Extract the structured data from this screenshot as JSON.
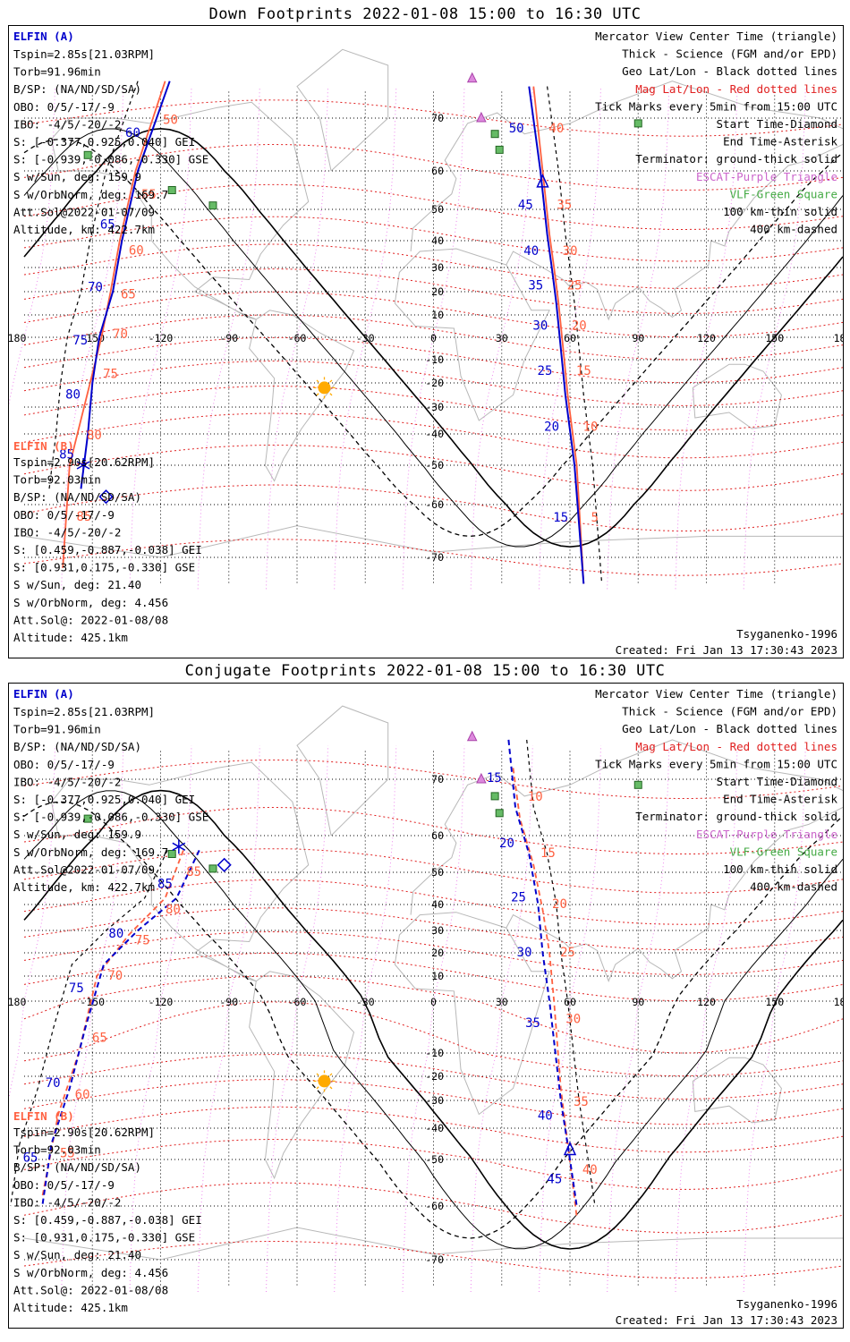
{
  "colors": {
    "elfin_a": "#0000cc",
    "elfin_b": "#ff6040",
    "mag_grid": "#e02020",
    "geo_grid": "#000000",
    "terminator": "#000000",
    "escat": "#cc66cc",
    "vlf": "#44aa44",
    "sun": "#ffaa00",
    "coast": "#b8b8b8"
  },
  "icons": {
    "sun": "sun-icon",
    "escat": "purple-triangle-icon",
    "vlf": "green-square-icon"
  },
  "lon_ticks": [
    "180",
    "-150",
    "-120",
    "-90",
    "-60",
    "-30",
    "0",
    "30",
    "60",
    "90",
    "120",
    "150",
    "180"
  ],
  "lat_ticks": [
    "70",
    "60",
    "50",
    "40",
    "30",
    "20",
    "10",
    "0",
    "-10",
    "-20",
    "-30",
    "-40",
    "-50",
    "-60",
    "-70"
  ],
  "legend": [
    "Mercator View Center Time (triangle)",
    "Thick - Science (FGM and/or EPD)",
    "Geo Lat/Lon - Black dotted lines",
    "Mag Lat/Lon - Red dotted lines",
    "Tick Marks every 5min from 15:00 UTC",
    "Start Time-Diamond",
    "End Time-Asterisk",
    "Terminator: ground-thick solid",
    "ESCAT-Purple Triangle",
    "VLF-Green Square",
    "100 km-thin solid",
    "400 km-dashed"
  ],
  "elfin_a": {
    "name": "ELFIN (A)",
    "lines": [
      "Tspin=2.85s[21.03RPM]",
      "Torb=91.96min",
      "B/SP: (NA/ND/SD/SA)",
      "OBO: 0/5/-17/-9",
      "IBO: -4/5/-20/-2",
      "S: [-0.377,0.925,0.040] GEI",
      "S: [-0.939,-0.086,-0.330] GSE",
      "S w/Sun, deg: 159.9",
      "S w/OrbNorm, deg: 169.7",
      "Att.Sol@2022-01-07/09",
      "Altitude, km: 422.7km"
    ]
  },
  "elfin_b": {
    "name": "ELFIN (B)",
    "lines": [
      "Tspin=2.90s[20.62RPM]",
      "Torb=92.03min",
      "B/SP: (NA/ND/SD/SA)",
      "OBO: 0/5/-17/-9",
      "IBO: -4/5/-20/-2",
      "S: [0.459,-0.887,-0.038] GEI",
      "S: [0.931,0.175,-0.330] GSE",
      "S w/Sun, deg: 21.40",
      "S w/OrbNorm, deg: 4.456",
      "Att.Sol@: 2022-01-08/08",
      "Altitude: 425.1km"
    ]
  },
  "model": "Tsyganenko-1996",
  "created": "Created: Fri Jan 13 17:30:43 2023",
  "panels": [
    {
      "title": "Down Footprints 2022-01-08 15:00 to 16:30 UTC",
      "a_labels": [
        [
          "50",
          "bl"
        ],
        [
          "45",
          "bl"
        ],
        [
          "40",
          "bl"
        ],
        [
          "35",
          "bl"
        ],
        [
          "30",
          "bl"
        ],
        [
          "25",
          "bl"
        ],
        [
          "20",
          "bl"
        ],
        [
          "15",
          "bl"
        ],
        [
          "60",
          "bl"
        ],
        [
          "65",
          "bl"
        ],
        [
          "70",
          "bl"
        ],
        [
          "75",
          "bl"
        ],
        [
          "80",
          "bl"
        ],
        [
          "85",
          "bl"
        ]
      ],
      "b_labels": [
        [
          "40",
          "rd"
        ],
        [
          "35",
          "rd"
        ],
        [
          "30",
          "rd"
        ],
        [
          "25",
          "rd"
        ],
        [
          "20",
          "rd"
        ],
        [
          "15",
          "rd"
        ],
        [
          "10",
          "rd"
        ],
        [
          "5",
          "rd"
        ],
        [
          "50",
          "rd"
        ],
        [
          "55",
          "rd"
        ],
        [
          "60",
          "rd"
        ],
        [
          "65",
          "rd"
        ],
        [
          "70",
          "rd"
        ],
        [
          "75",
          "rd"
        ],
        [
          "80",
          "rd"
        ],
        [
          "85",
          "rd"
        ]
      ]
    },
    {
      "title": "Conjugate Footprints 2022-01-08 15:00 to 16:30 UTC",
      "a_labels": [
        [
          "15",
          "bl"
        ],
        [
          "20",
          "bl"
        ],
        [
          "25",
          "bl"
        ],
        [
          "30",
          "bl"
        ],
        [
          "35",
          "bl"
        ],
        [
          "40",
          "bl"
        ],
        [
          "45",
          "bl"
        ],
        [
          "85",
          "bl"
        ],
        [
          "80",
          "bl"
        ],
        [
          "75",
          "bl"
        ],
        [
          "70",
          "bl"
        ],
        [
          "65",
          "bl"
        ]
      ],
      "b_labels": [
        [
          "10",
          "rd"
        ],
        [
          "15",
          "rd"
        ],
        [
          "20",
          "rd"
        ],
        [
          "25",
          "rd"
        ],
        [
          "30",
          "rd"
        ],
        [
          "35",
          "rd"
        ],
        [
          "40",
          "rd"
        ],
        [
          "85",
          "rd"
        ],
        [
          "80",
          "rd"
        ],
        [
          "75",
          "rd"
        ],
        [
          "70",
          "rd"
        ],
        [
          "65",
          "rd"
        ],
        [
          "60",
          "rd"
        ],
        [
          "55",
          "rd"
        ]
      ]
    }
  ]
}
